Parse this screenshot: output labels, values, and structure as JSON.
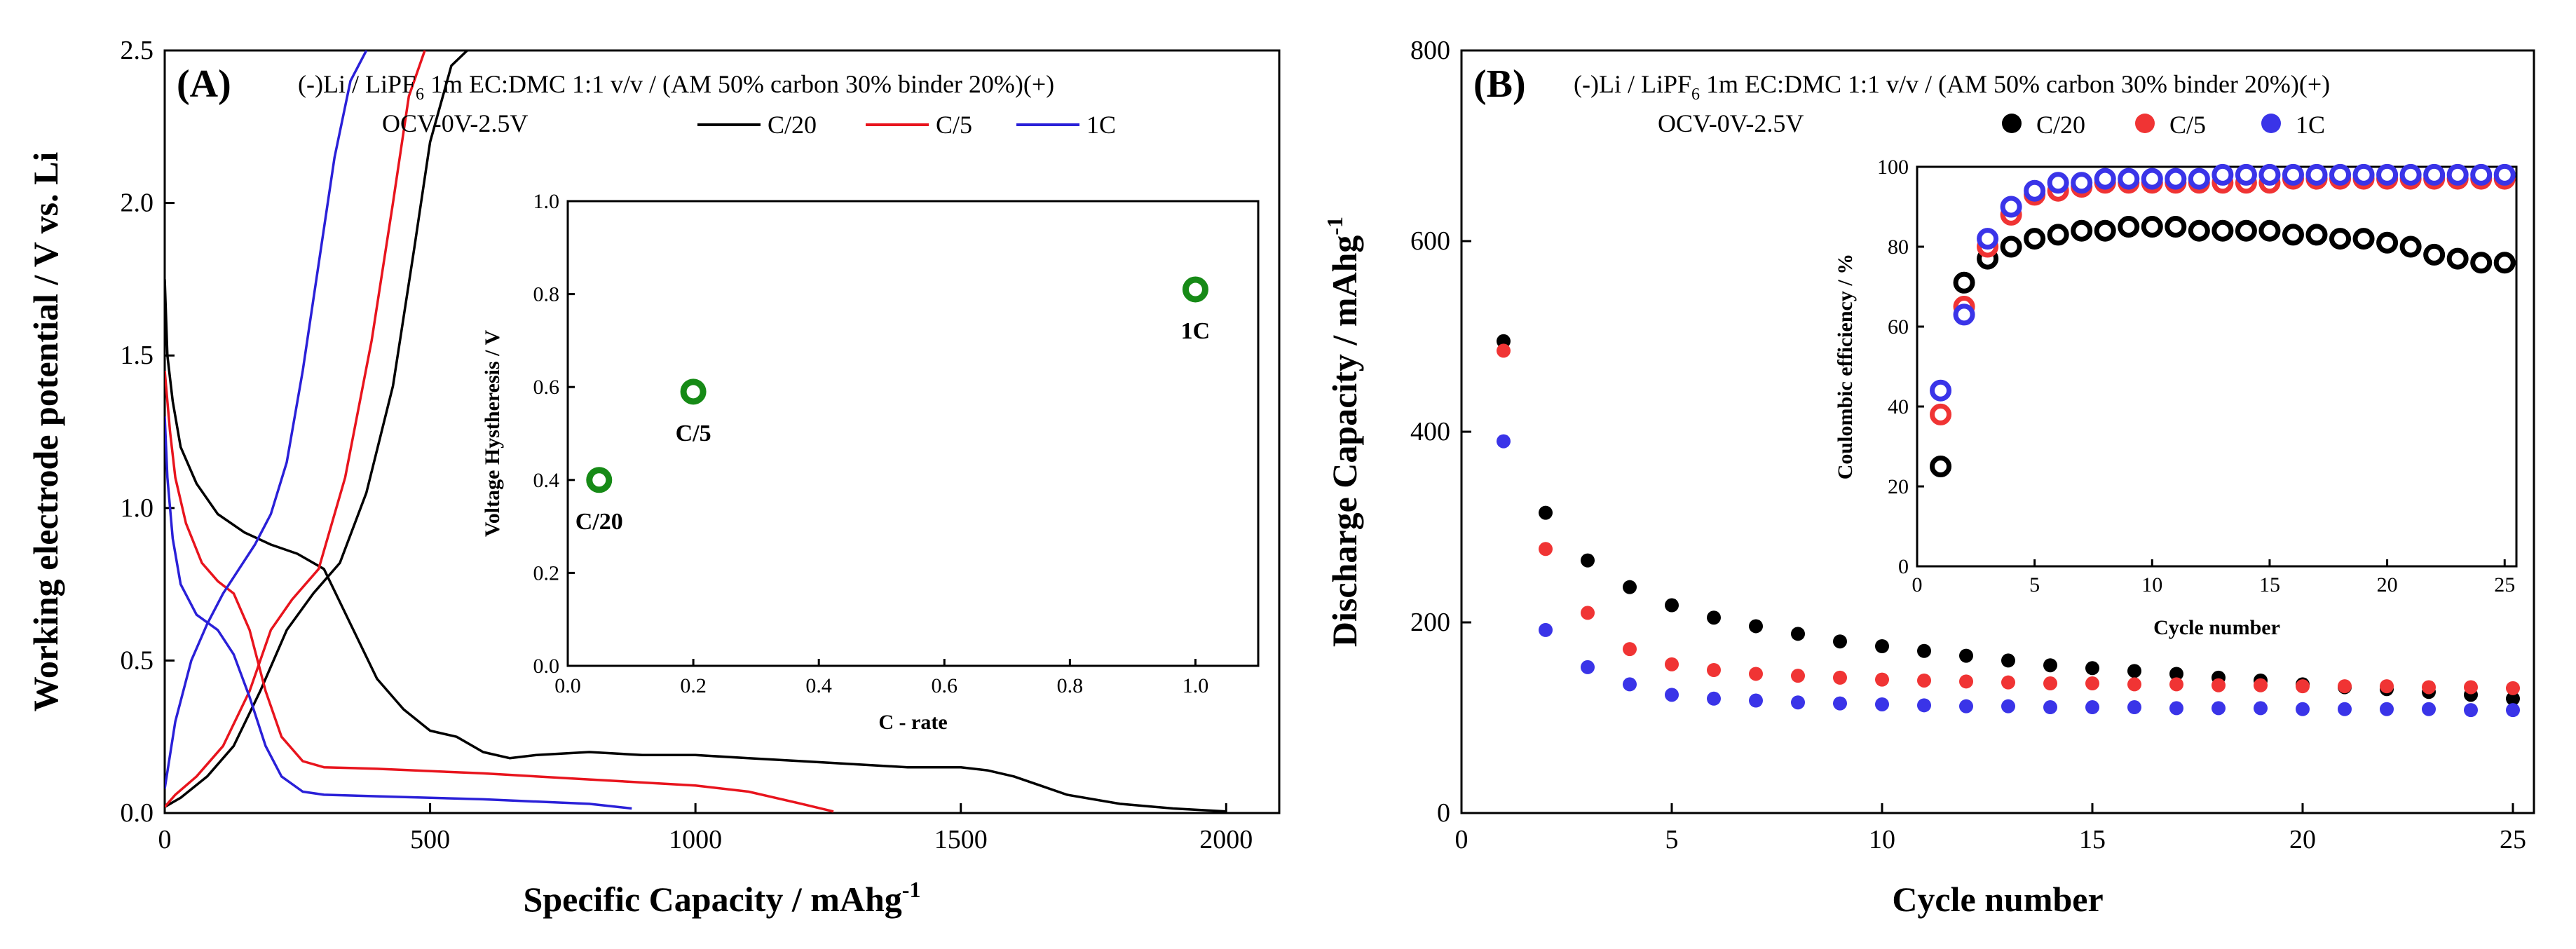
{
  "chart_data": [
    {
      "panel_label": "(A)",
      "type": "line",
      "cell_text": "(-)Li / LiPF6 1m EC:DMC 1:1 v/v / (AM 50% carbon 30% binder 20%)(+)",
      "cell_text_parts": {
        "pre": "(-)Li / LiPF",
        "sub": "6",
        "post": " 1m EC:DMC 1:1 v/v / (AM 50% carbon 30% binder 20%)(+)"
      },
      "voltage_window": "OCV-0V-2.5V",
      "xlabel": "Specific Capacity / mAhg",
      "xlabel_sup": "-1",
      "ylabel": "Working electrode potential / V vs. Li",
      "xlim": [
        0,
        2100
      ],
      "ylim": [
        0,
        2.5
      ],
      "xticks": [
        0,
        500,
        1000,
        1500,
        2000
      ],
      "yticks": [
        0.0,
        0.5,
        1.0,
        1.5,
        2.0,
        2.5
      ],
      "xtick_labels": [
        "0",
        "500",
        "1000",
        "1500",
        "2000"
      ],
      "ytick_labels": [
        "0.0",
        "0.5",
        "1.0",
        "1.5",
        "2.0",
        "2.5"
      ],
      "legend": "top-right",
      "series": [
        {
          "name": "C/20",
          "color": "#000000",
          "discharge": {
            "x": [
              0,
              5,
              15,
              30,
              60,
              100,
              150,
              200,
              250,
              300,
              350,
              400,
              450,
              500,
              550,
              600,
              650,
              700,
              800,
              900,
              1000,
              1100,
              1200,
              1300,
              1400,
              1500,
              1550,
              1600,
              1650,
              1700,
              1800,
              1900,
              2000
            ],
            "y": [
              1.75,
              1.5,
              1.35,
              1.2,
              1.08,
              0.98,
              0.92,
              0.88,
              0.85,
              0.8,
              0.62,
              0.44,
              0.34,
              0.27,
              0.25,
              0.2,
              0.18,
              0.19,
              0.2,
              0.19,
              0.19,
              0.18,
              0.17,
              0.16,
              0.15,
              0.15,
              0.14,
              0.12,
              0.09,
              0.06,
              0.03,
              0.015,
              0.005
            ]
          },
          "charge": {
            "x": [
              0,
              30,
              80,
              130,
              180,
              230,
              280,
              330,
              380,
              430,
              470,
              500,
              540,
              570
            ],
            "y": [
              0.02,
              0.05,
              0.12,
              0.22,
              0.4,
              0.6,
              0.72,
              0.82,
              1.05,
              1.4,
              1.85,
              2.2,
              2.45,
              2.5
            ]
          }
        },
        {
          "name": "C/5",
          "color": "#e8141d",
          "discharge": {
            "x": [
              0,
              10,
              20,
              40,
              70,
              100,
              130,
              160,
              190,
              220,
              260,
              300,
              400,
              600,
              800,
              1000,
              1100,
              1150,
              1200,
              1260
            ],
            "y": [
              1.45,
              1.25,
              1.1,
              0.95,
              0.82,
              0.76,
              0.72,
              0.6,
              0.4,
              0.25,
              0.17,
              0.15,
              0.145,
              0.13,
              0.11,
              0.09,
              0.07,
              0.05,
              0.03,
              0.005
            ]
          },
          "charge": {
            "x": [
              0,
              20,
              60,
              110,
              160,
              200,
              240,
              290,
              340,
              390,
              430,
              460,
              490
            ],
            "y": [
              0.02,
              0.06,
              0.12,
              0.22,
              0.4,
              0.6,
              0.7,
              0.8,
              1.1,
              1.55,
              2.0,
              2.35,
              2.5
            ]
          }
        },
        {
          "name": "1C",
          "color": "#2a20d8",
          "discharge": {
            "x": [
              0,
              5,
              15,
              30,
              60,
              100,
              130,
              160,
              190,
              220,
              260,
              300,
              400,
              600,
              800,
              880
            ],
            "y": [
              1.3,
              1.1,
              0.9,
              0.75,
              0.65,
              0.6,
              0.52,
              0.38,
              0.22,
              0.12,
              0.07,
              0.06,
              0.055,
              0.045,
              0.03,
              0.015
            ]
          },
          "charge": {
            "x": [
              0,
              20,
              50,
              80,
              110,
              140,
              170,
              200,
              230,
              260,
              290,
              320,
              350,
              380
            ],
            "y": [
              0.08,
              0.3,
              0.5,
              0.62,
              0.72,
              0.8,
              0.88,
              0.98,
              1.15,
              1.45,
              1.8,
              2.15,
              2.4,
              2.5
            ]
          }
        }
      ],
      "inset": {
        "type": "scatter",
        "xlabel": "C - rate",
        "ylabel": "Voltage Hystheresis / V",
        "xlim": [
          0,
          1.1
        ],
        "ylim": [
          0,
          1.0
        ],
        "xticks": [
          0.0,
          0.2,
          0.4,
          0.6,
          0.8,
          1.0
        ],
        "yticks": [
          0.0,
          0.2,
          0.4,
          0.6,
          0.8,
          1.0
        ],
        "xtick_labels": [
          "0.0",
          "0.2",
          "0.4",
          "0.6",
          "0.8",
          "1.0"
        ],
        "ytick_labels": [
          "0.0",
          "0.2",
          "0.4",
          "0.6",
          "0.8",
          "1.0"
        ],
        "marker_color": "#168a16",
        "points": [
          {
            "x": 0.05,
            "y": 0.4,
            "label": "C/20"
          },
          {
            "x": 0.2,
            "y": 0.59,
            "label": "C/5"
          },
          {
            "x": 1.0,
            "y": 0.81,
            "label": "1C"
          }
        ]
      }
    },
    {
      "panel_label": "(B)",
      "type": "scatter",
      "cell_text": "(-)Li / LiPF6 1m EC:DMC 1:1 v/v / (AM 50% carbon 30% binder 20%)(+)",
      "cell_text_parts": {
        "pre": "(-)Li / LiPF",
        "sub": "6",
        "post": " 1m EC:DMC 1:1 v/v / (AM 50% carbon 30% binder 20%)(+)"
      },
      "voltage_window": "OCV-0V-2.5V",
      "xlabel": "Cycle number",
      "ylabel": "Discharge Capacity / mAhg",
      "ylabel_sup": "-1",
      "xlim": [
        0,
        25.5
      ],
      "ylim": [
        0,
        800
      ],
      "xticks": [
        0,
        5,
        10,
        15,
        20,
        25
      ],
      "yticks": [
        0,
        200,
        400,
        600,
        800
      ],
      "xtick_labels": [
        "0",
        "5",
        "10",
        "15",
        "20",
        "25"
      ],
      "ytick_labels": [
        "0",
        "200",
        "400",
        "600",
        "800"
      ],
      "legend": "top-right",
      "x": [
        1,
        2,
        3,
        4,
        5,
        6,
        7,
        8,
        9,
        10,
        11,
        12,
        13,
        14,
        15,
        16,
        17,
        18,
        19,
        20,
        21,
        22,
        23,
        24,
        25
      ],
      "series": [
        {
          "name": "C/20",
          "color": "#000000",
          "values": [
            495,
            315,
            265,
            237,
            218,
            205,
            196,
            188,
            180,
            175,
            170,
            165,
            160,
            155,
            152,
            149,
            146,
            142,
            139,
            135,
            132,
            130,
            127,
            124,
            120
          ]
        },
        {
          "name": "C/5",
          "color": "#f03434",
          "values": [
            485,
            277,
            210,
            172,
            156,
            150,
            146,
            144,
            142,
            140,
            139,
            138,
            137,
            136,
            136,
            135,
            135,
            134,
            134,
            133,
            133,
            133,
            132,
            132,
            131
          ]
        },
        {
          "name": "1C",
          "color": "#3a34e8",
          "values": [
            390,
            192,
            153,
            135,
            124,
            120,
            118,
            116,
            115,
            114,
            113,
            112,
            112,
            111,
            111,
            111,
            110,
            110,
            110,
            109,
            109,
            109,
            109,
            108,
            108
          ]
        }
      ],
      "inset": {
        "type": "scatter",
        "xlabel": "Cycle number",
        "ylabel": "Coulombic efficiency / %",
        "xlim": [
          0,
          25.5
        ],
        "ylim": [
          0,
          100
        ],
        "xticks": [
          0,
          5,
          10,
          15,
          20,
          25
        ],
        "yticks": [
          0,
          20,
          40,
          60,
          80,
          100
        ],
        "xtick_labels": [
          "0",
          "5",
          "10",
          "15",
          "20",
          "25"
        ],
        "ytick_labels": [
          "0",
          "20",
          "40",
          "60",
          "80",
          "100"
        ],
        "x": [
          1,
          2,
          3,
          4,
          5,
          6,
          7,
          8,
          9,
          10,
          11,
          12,
          13,
          14,
          15,
          16,
          17,
          18,
          19,
          20,
          21,
          22,
          23,
          24,
          25
        ],
        "series": [
          {
            "name": "C/20",
            "color": "#000000",
            "values": [
              25,
              71,
              77,
              80,
              82,
              83,
              84,
              84,
              85,
              85,
              85,
              84,
              84,
              84,
              84,
              83,
              83,
              82,
              82,
              81,
              80,
              78,
              77,
              76,
              76
            ]
          },
          {
            "name": "C/5",
            "color": "#f03434",
            "values": [
              38,
              65,
              80,
              88,
              93,
              94,
              95,
              96,
              96,
              96,
              96,
              96,
              96,
              96,
              96,
              97,
              97,
              97,
              97,
              97,
              97,
              97,
              97,
              97,
              97
            ]
          },
          {
            "name": "1C",
            "color": "#3a34e8",
            "values": [
              44,
              63,
              82,
              90,
              94,
              96,
              96,
              97,
              97,
              97,
              97,
              97,
              98,
              98,
              98,
              98,
              98,
              98,
              98,
              98,
              98,
              98,
              98,
              98,
              98
            ]
          }
        ]
      }
    }
  ]
}
